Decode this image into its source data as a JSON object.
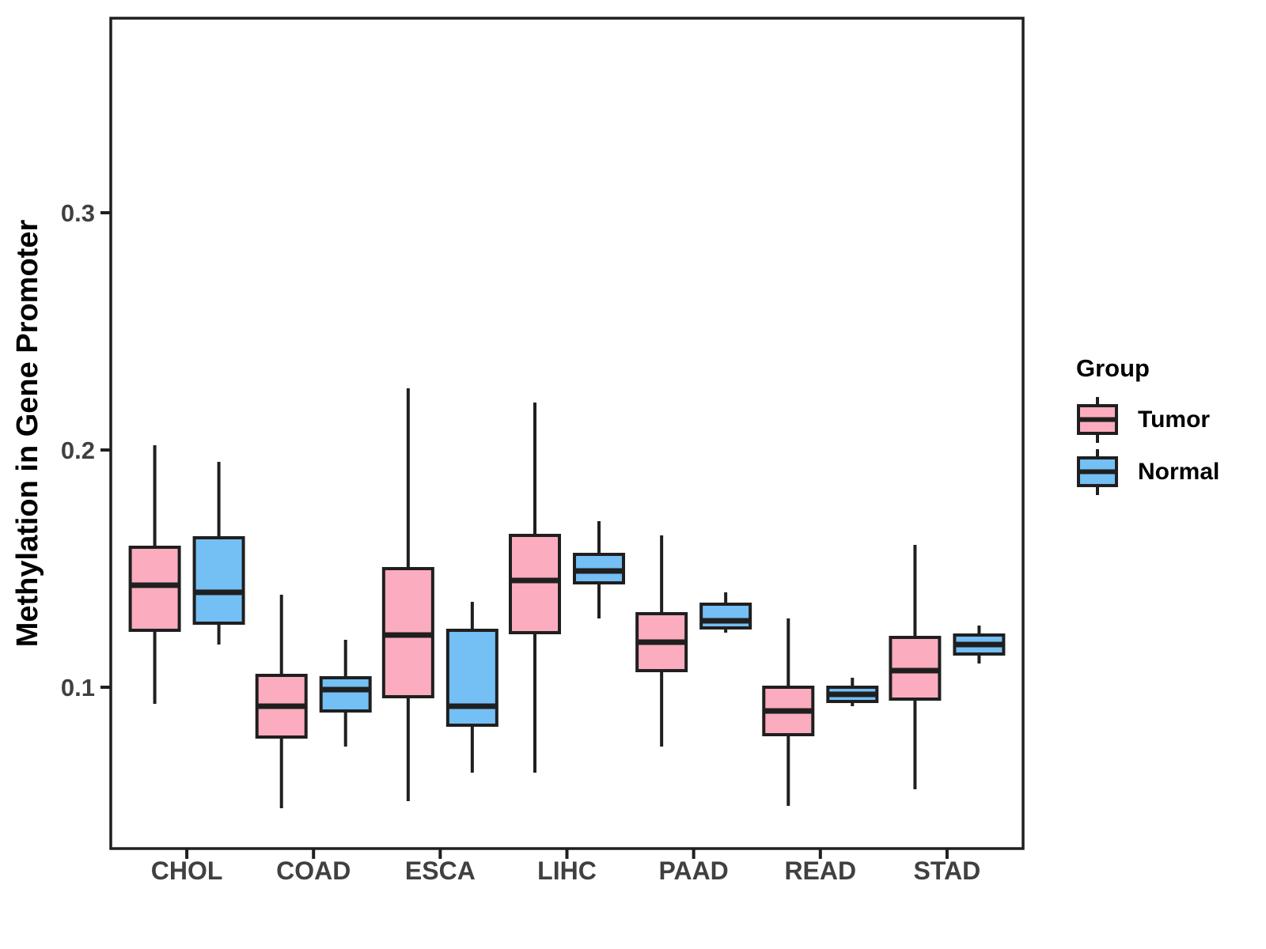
{
  "legend": {
    "title": "Group",
    "position": "right"
  },
  "chart_data": {
    "type": "boxplot",
    "title": "",
    "xlabel": "",
    "ylabel": "Methylation in Gene Promoter",
    "categories": [
      "CHOL",
      "COAD",
      "ESCA",
      "LIHC",
      "PAAD",
      "READ",
      "STAD"
    ],
    "y_ticks": [
      {
        "value": 0.1,
        "label": "0.1"
      },
      {
        "value": 0.2,
        "label": "0.2"
      },
      {
        "value": 0.3,
        "label": "0.3"
      }
    ],
    "ylim": [
      0.032,
      0.382
    ],
    "grid": false,
    "legend_position": "right",
    "panel_border": true,
    "colors": {
      "box_stroke": "#1F1F1F",
      "axis_text": "#404040",
      "axis_title": "#000000"
    },
    "series": [
      {
        "name": "Tumor",
        "color": "#FBACBE",
        "boxes": [
          {
            "category": "CHOL",
            "min": 0.093,
            "q1": 0.124,
            "median": 0.143,
            "q3": 0.159,
            "max": 0.202
          },
          {
            "category": "COAD",
            "min": 0.049,
            "q1": 0.079,
            "median": 0.092,
            "q3": 0.105,
            "max": 0.139
          },
          {
            "category": "ESCA",
            "min": 0.052,
            "q1": 0.096,
            "median": 0.122,
            "q3": 0.15,
            "max": 0.226
          },
          {
            "category": "LIHC",
            "min": 0.064,
            "q1": 0.123,
            "median": 0.145,
            "q3": 0.164,
            "max": 0.22
          },
          {
            "category": "PAAD",
            "min": 0.075,
            "q1": 0.107,
            "median": 0.119,
            "q3": 0.131,
            "max": 0.164
          },
          {
            "category": "READ",
            "min": 0.05,
            "q1": 0.08,
            "median": 0.09,
            "q3": 0.1,
            "max": 0.129
          },
          {
            "category": "STAD",
            "min": 0.057,
            "q1": 0.095,
            "median": 0.107,
            "q3": 0.121,
            "max": 0.16
          }
        ]
      },
      {
        "name": "Normal",
        "color": "#74BFF4",
        "boxes": [
          {
            "category": "CHOL",
            "min": 0.118,
            "q1": 0.127,
            "median": 0.14,
            "q3": 0.163,
            "max": 0.195
          },
          {
            "category": "COAD",
            "min": 0.075,
            "q1": 0.09,
            "median": 0.099,
            "q3": 0.104,
            "max": 0.12
          },
          {
            "category": "ESCA",
            "min": 0.064,
            "q1": 0.084,
            "median": 0.092,
            "q3": 0.124,
            "max": 0.136
          },
          {
            "category": "LIHC",
            "min": 0.129,
            "q1": 0.144,
            "median": 0.149,
            "q3": 0.156,
            "max": 0.17
          },
          {
            "category": "PAAD",
            "min": 0.123,
            "q1": 0.125,
            "median": 0.128,
            "q3": 0.135,
            "max": 0.14
          },
          {
            "category": "READ",
            "min": 0.092,
            "q1": 0.094,
            "median": 0.097,
            "q3": 0.1,
            "max": 0.104
          },
          {
            "category": "STAD",
            "min": 0.11,
            "q1": 0.114,
            "median": 0.118,
            "q3": 0.122,
            "max": 0.126
          }
        ]
      }
    ]
  }
}
